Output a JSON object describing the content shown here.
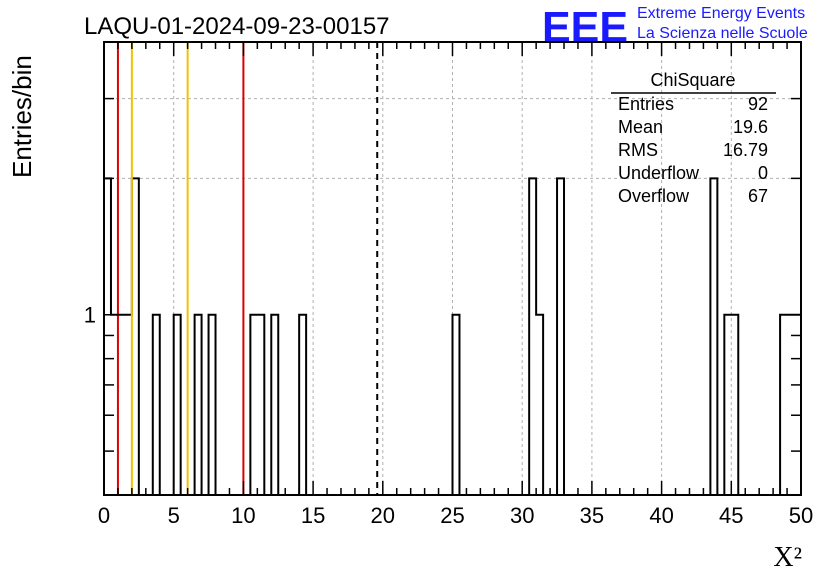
{
  "header": {
    "run_title": "LAQU-01-2024-09-23-00157",
    "logo_text": "EEE",
    "logo_line1": "Extreme Energy Events",
    "logo_line2": "La Scienza nelle Scuole",
    "brand_color": "#1a1aff"
  },
  "stats_box": {
    "title": "ChiSquare",
    "rows": [
      {
        "label": "Entries",
        "value": "92"
      },
      {
        "label": "Mean",
        "value": "19.6"
      },
      {
        "label": "RMS",
        "value": "16.79"
      },
      {
        "label": "Underflow",
        "value": "0"
      },
      {
        "label": "Overflow",
        "value": "67"
      }
    ]
  },
  "chart_data": {
    "type": "histogram",
    "title": "LAQU-01-2024-09-23-00157",
    "xlabel": "X²",
    "ylabel": "Entries/bin",
    "xlim": [
      0,
      50
    ],
    "ylim": [
      0.4,
      4
    ],
    "y_scale": "log",
    "grid": true,
    "bin_width": 0.5,
    "x_ticks": [
      0,
      5,
      10,
      15,
      20,
      25,
      30,
      35,
      40,
      45,
      50
    ],
    "y_tick_labels": [
      {
        "value": 1,
        "label": "1"
      }
    ],
    "bins": [
      {
        "x0": 0.0,
        "count": 2
      },
      {
        "x0": 0.5,
        "count": 1
      },
      {
        "x0": 1.0,
        "count": 1
      },
      {
        "x0": 1.5,
        "count": 1
      },
      {
        "x0": 2.0,
        "count": 2
      },
      {
        "x0": 3.5,
        "count": 1
      },
      {
        "x0": 5.0,
        "count": 1
      },
      {
        "x0": 6.5,
        "count": 1
      },
      {
        "x0": 7.5,
        "count": 1
      },
      {
        "x0": 10.5,
        "count": 1
      },
      {
        "x0": 11.0,
        "count": 1
      },
      {
        "x0": 12.0,
        "count": 1
      },
      {
        "x0": 14.0,
        "count": 1
      },
      {
        "x0": 25.0,
        "count": 1
      },
      {
        "x0": 30.5,
        "count": 2
      },
      {
        "x0": 31.0,
        "count": 1
      },
      {
        "x0": 32.5,
        "count": 2
      },
      {
        "x0": 43.5,
        "count": 2
      },
      {
        "x0": 44.5,
        "count": 1
      },
      {
        "x0": 45.0,
        "count": 1
      },
      {
        "x0": 48.5,
        "count": 1
      },
      {
        "x0": 49.0,
        "count": 1
      },
      {
        "x0": 49.5,
        "count": 1
      }
    ],
    "reference_lines": [
      {
        "x": 1.0,
        "color": "#dd0000",
        "style": "solid"
      },
      {
        "x": 2.0,
        "color": "#f2c200",
        "style": "solid"
      },
      {
        "x": 6.0,
        "color": "#f2c200",
        "style": "solid"
      },
      {
        "x": 10.0,
        "color": "#dd0000",
        "style": "solid"
      },
      {
        "x": 19.6,
        "color": "#000000",
        "style": "dashed"
      }
    ]
  }
}
